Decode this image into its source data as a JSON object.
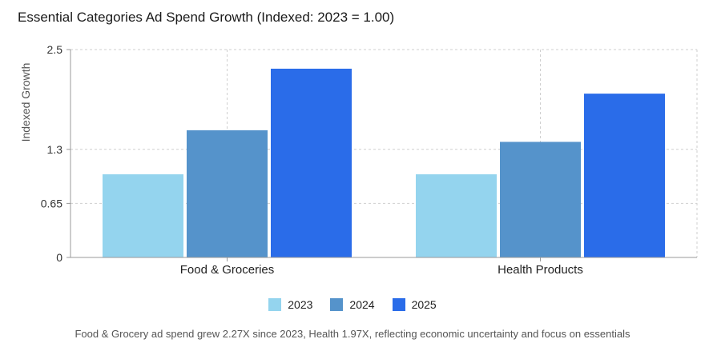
{
  "chart_data": {
    "type": "bar",
    "title": "Essential Categories Ad Spend Growth (Indexed: 2023 = 1.00)",
    "xlabel": "",
    "ylabel": "Indexed Growth",
    "categories": [
      "Food & Groceries",
      "Health Products"
    ],
    "series": [
      {
        "name": "2023",
        "values": [
          1.0,
          1.0
        ],
        "color": "#94d4ee"
      },
      {
        "name": "2024",
        "values": [
          1.53,
          1.39
        ],
        "color": "#5593cb"
      },
      {
        "name": "2025",
        "values": [
          2.27,
          1.97
        ],
        "color": "#2a6ce9"
      }
    ],
    "ylim": [
      0,
      2.5
    ],
    "yticks": [
      0,
      0.65,
      1.3,
      2.5
    ],
    "ytick_labels": [
      "0",
      "0.65",
      "1.3",
      "2.5"
    ],
    "grid": true,
    "legend_position": "bottom-center",
    "caption": "Food & Grocery ad spend grew 2.27X since 2023, Health 1.97X, reflecting economic uncertainty and focus on essentials"
  }
}
